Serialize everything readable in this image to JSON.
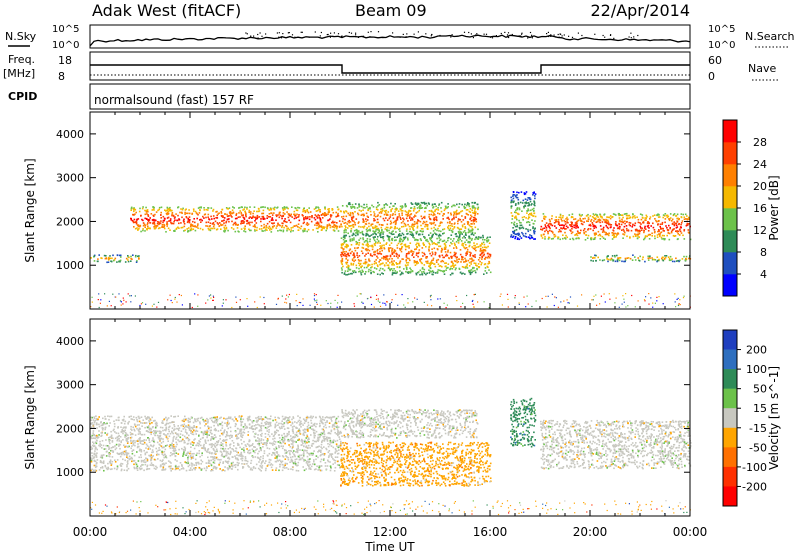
{
  "header": {
    "station": "Adak West (fitACF)",
    "beam": "Beam 09",
    "date": "22/Apr/2014"
  },
  "strips": {
    "nsky": {
      "label": "N.Sky",
      "tick_top": "10^5",
      "tick_bottom": "10^0"
    },
    "nsearch": {
      "label": "N.Search",
      "tick_top": "10^5",
      "tick_bottom": "10^0"
    },
    "freq": {
      "label_line1": "Freq.",
      "label_line2": "[MHz]",
      "tick_top": "18",
      "tick_bottom": "8"
    },
    "nave": {
      "label": "Nave",
      "tick_top": "60",
      "tick_bottom": "0"
    },
    "cpid": {
      "label": "CPID",
      "program": "normalsound (fast) 157 RF"
    }
  },
  "chart_data": [
    {
      "type": "heatmap",
      "parameter": "Power",
      "ylabel": "Slant Range [km]",
      "ylim": [
        0,
        4500
      ],
      "yticks": [
        1000,
        2000,
        3000,
        4000
      ],
      "xlim_hours": [
        0,
        24
      ],
      "xticks": [
        "00:00",
        "04:00",
        "08:00",
        "12:00",
        "16:00",
        "20:00",
        "00:00"
      ],
      "colorbar": {
        "label": "Power [dB]",
        "ticks": [
          "4",
          "8",
          "12",
          "16",
          "20",
          "24",
          "28"
        ],
        "colors": [
          "#0000ff",
          "#1f4fbf",
          "#2e8b57",
          "#6cc24a",
          "#f5b800",
          "#ff8000",
          "#ff4000",
          "#ff0000"
        ]
      },
      "echo_bands": [
        {
          "start_hour": 0.0,
          "end_hour": 2.0,
          "range_km": [
            1080,
            1250
          ],
          "power_db": 12
        },
        {
          "start_hour": 1.6,
          "end_hour": 10.0,
          "range_km": [
            1780,
            2350
          ],
          "power_db": 20
        },
        {
          "start_hour": 10.0,
          "end_hour": 15.5,
          "range_km": [
            1700,
            2450
          ],
          "power_db": 16
        },
        {
          "start_hour": 10.0,
          "end_hour": 16.0,
          "range_km": [
            800,
            1700
          ],
          "power_db": 16
        },
        {
          "start_hour": 16.8,
          "end_hour": 17.8,
          "range_km": [
            1600,
            2700
          ],
          "power_db": 8
        },
        {
          "start_hour": 18.0,
          "end_hour": 24.0,
          "range_km": [
            1600,
            2200
          ],
          "power_db": 20
        },
        {
          "start_hour": 20.0,
          "end_hour": 24.0,
          "range_km": [
            1100,
            1250
          ],
          "power_db": 12
        }
      ]
    },
    {
      "type": "heatmap",
      "parameter": "Velocity",
      "ylabel": "Slant Range [km]",
      "xlabel": "Time UT",
      "ylim": [
        0,
        4500
      ],
      "yticks": [
        1000,
        2000,
        3000,
        4000
      ],
      "xlim_hours": [
        0,
        24
      ],
      "xticks": [
        "00:00",
        "04:00",
        "08:00",
        "12:00",
        "16:00",
        "20:00",
        "00:00"
      ],
      "colorbar": {
        "label": "Velocity [m s^-1]",
        "ticks": [
          "200",
          "100",
          "50",
          "15",
          "-15",
          "-50",
          "-100",
          "-200"
        ],
        "colors": [
          "#1f3fbf",
          "#2e6fbf",
          "#2e8b57",
          "#6cc24a",
          "#c8c8c0",
          "#ffa500",
          "#ff7000",
          "#ff3000",
          "#ff0000"
        ]
      },
      "echo_bands": [
        {
          "start_hour": 0.0,
          "end_hour": 10.0,
          "range_km": [
            1050,
            2300
          ],
          "velocity_ms": 0
        },
        {
          "start_hour": 10.0,
          "end_hour": 15.5,
          "range_km": [
            1800,
            2450
          ],
          "velocity_ms": 0
        },
        {
          "start_hour": 10.0,
          "end_hour": 16.0,
          "range_km": [
            700,
            1700
          ],
          "velocity_ms": -50
        },
        {
          "start_hour": 16.8,
          "end_hour": 17.8,
          "range_km": [
            1600,
            2700
          ],
          "velocity_ms": 50
        },
        {
          "start_hour": 18.0,
          "end_hour": 24.0,
          "range_km": [
            1100,
            2200
          ],
          "velocity_ms": 0
        }
      ]
    }
  ]
}
